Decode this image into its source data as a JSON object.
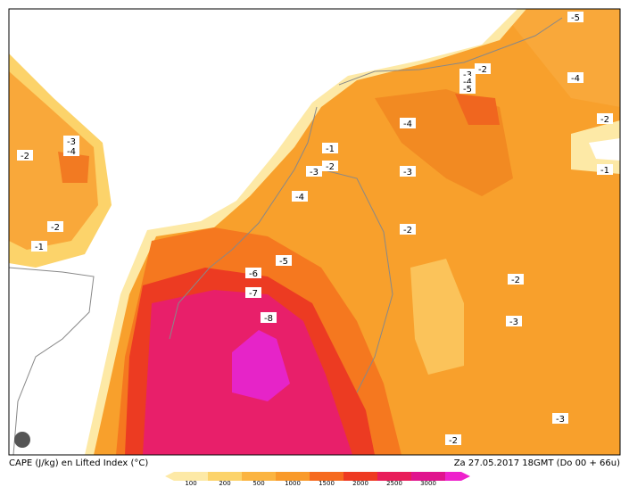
{
  "map": {
    "footer_left": "CAPE (J/kg) en Lifted Index (°C)",
    "footer_right": "Za 27.05.2017 18GMT (Do 00 + 66u)",
    "colorbar_ticks": [
      "100",
      "200",
      "500",
      "1000",
      "1500",
      "2000",
      "2500",
      "3000"
    ],
    "contour_labels": [
      "-5",
      "-2",
      "-3",
      "-4",
      "-5",
      "-4",
      "-2",
      "-1",
      "-4",
      "-1",
      "-2",
      "-3",
      "-3",
      "-3",
      "-4",
      "-2",
      "-4",
      "-2",
      "-2",
      "-1",
      "-6",
      "-5",
      "-7",
      "-8",
      "-2",
      "-3",
      "-3",
      "-2"
    ]
  }
}
